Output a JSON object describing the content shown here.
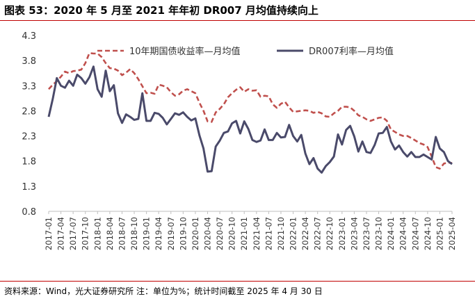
{
  "title": "图表 53：2020 年 5 月至 2021 年年初 DR007 月均值持续向上",
  "source": "资料来源：Wind，光大证券研究所 注：单位为%；统计时间截至 2025 年 4 月 30 日",
  "colors": {
    "bond10y": "#c0504d",
    "dr007": "#4a4a6a",
    "rule": "#c00000"
  },
  "chart_data": {
    "type": "line",
    "title": "图表 53：2020 年 5 月至 2021 年年初 DR007 月均值持续向上",
    "xlabel": "",
    "ylabel": "",
    "ylim": [
      0.8,
      4.3
    ],
    "yticks": [
      "4.3",
      "3.8",
      "3.3",
      "2.8",
      "2.3",
      "1.8",
      "1.3",
      "0.8"
    ],
    "xtick_labels": [
      "2017-01",
      "2017-04",
      "2017-07",
      "2017-10",
      "2018-01",
      "2018-04",
      "2018-07",
      "2018-10",
      "2019-01",
      "2019-04",
      "2019-07",
      "2019-10",
      "2020-01",
      "2020-04",
      "2020-07",
      "2020-10",
      "2021-01",
      "2021-04",
      "2021-07",
      "2021-10",
      "2022-01",
      "2022-04",
      "2022-07",
      "2022-10",
      "2023-01",
      "2023-04",
      "2023-07",
      "2023-10",
      "2024-01",
      "2024-04",
      "2024-07",
      "2024-10",
      "2025-01",
      "2025-04"
    ],
    "x_start": "2017-01",
    "grid": false,
    "legend_position": "top",
    "series": [
      {
        "name": "10年期国债收益率—月均值",
        "style": "dashed",
        "values": [
          3.23,
          3.32,
          3.39,
          3.48,
          3.58,
          3.55,
          3.59,
          3.6,
          3.62,
          3.75,
          3.95,
          3.94,
          3.94,
          3.87,
          3.75,
          3.65,
          3.64,
          3.6,
          3.51,
          3.56,
          3.63,
          3.55,
          3.43,
          3.29,
          3.15,
          3.16,
          3.14,
          3.32,
          3.3,
          3.27,
          3.17,
          3.1,
          3.13,
          3.2,
          3.23,
          3.19,
          3.15,
          2.96,
          2.8,
          2.59,
          2.58,
          2.77,
          2.84,
          2.93,
          3.07,
          3.15,
          3.22,
          3.27,
          3.18,
          3.23,
          3.2,
          3.21,
          3.08,
          3.1,
          3.09,
          2.93,
          2.86,
          2.94,
          2.98,
          2.87,
          2.78,
          2.79,
          2.8,
          2.81,
          2.8,
          2.76,
          2.78,
          2.75,
          2.69,
          2.68,
          2.75,
          2.8,
          2.88,
          2.88,
          2.87,
          2.8,
          2.71,
          2.68,
          2.63,
          2.6,
          2.63,
          2.66,
          2.67,
          2.6,
          2.43,
          2.38,
          2.33,
          2.3,
          2.3,
          2.26,
          2.21,
          2.16,
          2.13,
          2.08,
          1.89,
          1.68,
          1.65,
          1.75,
          1.77,
          1.76
        ]
      },
      {
        "name": "DR007利率—月均值",
        "style": "solid",
        "values": [
          2.68,
          3.04,
          3.45,
          3.3,
          3.26,
          3.4,
          3.3,
          3.52,
          3.45,
          3.34,
          3.47,
          3.68,
          3.23,
          3.08,
          3.6,
          3.19,
          3.31,
          2.75,
          2.56,
          2.73,
          2.68,
          2.62,
          2.64,
          3.15,
          2.6,
          2.6,
          2.76,
          2.74,
          2.66,
          2.53,
          2.64,
          2.75,
          2.72,
          2.77,
          2.68,
          2.61,
          2.65,
          2.31,
          2.05,
          1.59,
          1.6,
          2.09,
          2.21,
          2.36,
          2.39,
          2.55,
          2.6,
          2.35,
          2.59,
          2.44,
          2.22,
          2.18,
          2.21,
          2.43,
          2.22,
          2.22,
          2.36,
          2.27,
          2.28,
          2.52,
          2.3,
          2.19,
          2.32,
          1.95,
          1.74,
          1.86,
          1.65,
          1.57,
          1.7,
          1.78,
          1.89,
          2.33,
          2.13,
          2.42,
          2.5,
          2.29,
          1.99,
          2.19,
          1.98,
          1.96,
          2.12,
          2.35,
          2.36,
          2.48,
          2.19,
          2.03,
          2.11,
          1.98,
          1.89,
          1.98,
          1.88,
          1.88,
          1.93,
          1.88,
          1.83,
          2.28,
          2.05,
          1.98,
          1.8,
          1.74
        ]
      }
    ]
  }
}
